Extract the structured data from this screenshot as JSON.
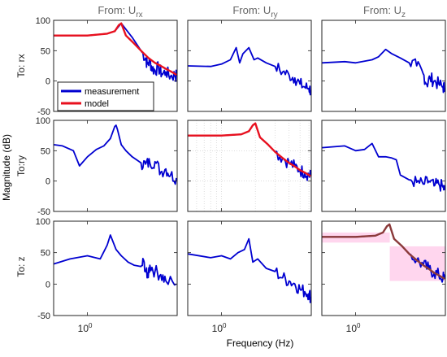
{
  "column_titles": [
    {
      "main": "From: U",
      "sub": "rx"
    },
    {
      "main": "From: U",
      "sub": "ry"
    },
    {
      "main": "From: U",
      "sub": "z"
    }
  ],
  "row_titles": [
    "To: rx",
    "To:ry",
    "To: z"
  ],
  "xlabel": "Frequency  (Hz)",
  "ylabel": "Magnitude (dB)",
  "x_tick_label": "10",
  "x_tick_exponent": "0",
  "legend": {
    "measurement": "measurement",
    "model": "model"
  },
  "colors": {
    "measurement": "#0000d0",
    "model": "#e8101e",
    "model_z": "#8b3a3a",
    "highlight": "#ffd6ee",
    "grid": "#c8c8c8"
  },
  "chart_data": {
    "type": "line",
    "layout": "3x3 grid",
    "xlabel": "Frequency  (Hz)",
    "ylabel": "Magnitude (dB)",
    "x_scale": "log",
    "xlim": [
      0.5,
      6.3
    ],
    "ylim": [
      -50,
      100
    ],
    "y_ticks": [
      -50,
      0,
      50,
      100
    ],
    "legend_position": "lower-left of top-left panel",
    "panels": [
      {
        "row": "To: rx",
        "col": "From: U rx",
        "grid": false,
        "series": [
          {
            "name": "measurement",
            "x": [
              0.5,
              1.0,
              1.5,
              1.75,
              2.0,
              2.5,
              3.0,
              3.3,
              3.4,
              3.6,
              3.8,
              4.0,
              4.3,
              4.6,
              5.0,
              5.5,
              6.0,
              6.2
            ],
            "y": [
              75,
              75,
              78,
              82,
              95,
              72,
              50,
              38,
              28,
              32,
              20,
              18,
              22,
              12,
              15,
              8,
              10,
              8
            ]
          },
          {
            "name": "model",
            "x": [
              0.5,
              1.0,
              1.5,
              1.75,
              1.9,
              2.0,
              2.2,
              2.6,
              3.0,
              3.5,
              4.0,
              4.5,
              5.0,
              5.5,
              6.0,
              6.2
            ],
            "y": [
              75,
              75,
              78,
              82,
              92,
              95,
              75,
              62,
              50,
              38,
              30,
              25,
              20,
              16,
              12,
              10
            ]
          }
        ]
      },
      {
        "row": "To: rx",
        "col": "From: U ry",
        "grid": false,
        "series": [
          {
            "name": "measurement",
            "x": [
              0.5,
              0.8,
              1.0,
              1.2,
              1.35,
              1.45,
              1.55,
              1.75,
              1.95,
              2.1,
              2.5,
              3.0,
              3.5,
              4.0,
              4.5,
              5.0,
              5.5,
              6.0,
              6.2
            ],
            "y": [
              25,
              24,
              28,
              35,
              55,
              30,
              45,
              55,
              35,
              38,
              30,
              24,
              15,
              10,
              5,
              -5,
              -10,
              -12,
              -15
            ]
          }
        ]
      },
      {
        "row": "To: rx",
        "col": "From: U z",
        "grid": false,
        "series": [
          {
            "name": "measurement",
            "x": [
              0.5,
              0.8,
              1.0,
              1.4,
              1.6,
              1.85,
              2.1,
              2.5,
              3.0,
              3.5,
              4.0,
              4.3,
              4.6,
              5.0,
              5.5,
              6.0,
              6.2
            ],
            "y": [
              30,
              32,
              30,
              35,
              40,
              52,
              45,
              38,
              30,
              25,
              12,
              -5,
              5,
              0,
              -5,
              -10,
              -12
            ]
          }
        ]
      },
      {
        "row": "To:ry",
        "col": "From: U rx",
        "grid": false,
        "series": [
          {
            "name": "measurement",
            "x": [
              0.5,
              0.6,
              0.75,
              0.85,
              1.0,
              1.2,
              1.4,
              1.6,
              1.75,
              1.8,
              1.85,
              2.0,
              2.2,
              2.5,
              3.0,
              3.3,
              3.6,
              4.0,
              4.5,
              5.0,
              5.5,
              6.2
            ],
            "y": [
              60,
              58,
              50,
              25,
              40,
              52,
              58,
              70,
              90,
              92,
              85,
              60,
              50,
              40,
              30,
              28,
              30,
              32,
              15,
              20,
              10,
              5
            ]
          }
        ]
      },
      {
        "row": "To:ry",
        "col": "From: U ry",
        "grid": true,
        "series": [
          {
            "name": "measurement",
            "x": [
              0.5,
              1.0,
              1.5,
              1.75,
              1.9,
              2.0,
              2.2,
              2.6,
              3.0,
              3.5,
              4.0,
              4.5,
              5.0,
              5.5,
              6.0,
              6.2
            ],
            "y": [
              75,
              75,
              77,
              82,
              92,
              95,
              72,
              60,
              48,
              38,
              30,
              24,
              18,
              14,
              10,
              8
            ]
          },
          {
            "name": "model",
            "x": [
              0.5,
              1.0,
              1.5,
              1.75,
              1.9,
              2.0,
              2.2,
              2.6,
              3.0,
              3.5,
              4.0,
              4.5,
              5.0,
              5.5,
              6.0,
              6.2
            ],
            "y": [
              75,
              75,
              77,
              82,
              92,
              95,
              72,
              60,
              48,
              38,
              30,
              24,
              18,
              14,
              10,
              8
            ]
          }
        ]
      },
      {
        "row": "To:ry",
        "col": "From: U z",
        "grid": false,
        "series": [
          {
            "name": "measurement",
            "x": [
              0.5,
              0.8,
              1.0,
              1.2,
              1.4,
              1.6,
              1.85,
              2.1,
              2.3,
              2.5,
              3.0,
              3.5,
              4.0,
              4.5,
              5.0,
              5.5,
              6.0,
              6.2
            ],
            "y": [
              55,
              58,
              50,
              52,
              62,
              40,
              40,
              38,
              35,
              10,
              2,
              -2,
              -5,
              0,
              -8,
              -5,
              -10,
              -15
            ]
          }
        ]
      },
      {
        "row": "To: z",
        "col": "From: U rx",
        "grid": false,
        "series": [
          {
            "name": "measurement",
            "x": [
              0.5,
              0.7,
              1.0,
              1.3,
              1.5,
              1.6,
              1.8,
              2.0,
              2.3,
              2.6,
              3.0,
              3.2,
              3.4,
              3.6,
              4.0,
              4.5,
              5.0,
              6.2
            ],
            "y": [
              32,
              40,
              45,
              40,
              62,
              78,
              55,
              45,
              35,
              30,
              28,
              35,
              10,
              30,
              20,
              15,
              5,
              0
            ]
          }
        ]
      },
      {
        "row": "To: z",
        "col": "From: U ry",
        "grid": false,
        "series": [
          {
            "name": "measurement",
            "x": [
              0.5,
              0.8,
              1.0,
              1.2,
              1.4,
              1.6,
              1.75,
              1.9,
              2.1,
              2.5,
              3.0,
              3.5,
              4.0,
              4.5,
              5.0,
              5.5,
              6.0,
              6.2
            ],
            "y": [
              48,
              42,
              45,
              40,
              50,
              55,
              72,
              35,
              40,
              25,
              20,
              10,
              5,
              0,
              -8,
              -12,
              -15,
              -20
            ]
          }
        ]
      },
      {
        "row": "To: z",
        "col": "From: U z",
        "grid": false,
        "series": [
          {
            "name": "measurement",
            "x": [
              0.5,
              1.0,
              1.5,
              1.75,
              1.9,
              2.0,
              2.2,
              2.6,
              3.0,
              3.5,
              4.0,
              4.5,
              5.0,
              5.5,
              6.0,
              6.2
            ],
            "y": [
              75,
              75,
              77,
              82,
              92,
              95,
              72,
              60,
              48,
              38,
              30,
              24,
              18,
              14,
              10,
              8
            ]
          },
          {
            "name": "model",
            "x": [
              0.5,
              1.0,
              1.5,
              1.75,
              1.9,
              2.0,
              2.2,
              2.6,
              3.0,
              3.5,
              4.0,
              4.5,
              5.0,
              5.5,
              6.0,
              6.2
            ],
            "y": [
              75,
              75,
              77,
              82,
              92,
              95,
              72,
              60,
              48,
              38,
              30,
              24,
              18,
              14,
              10,
              8
            ]
          }
        ]
      }
    ]
  }
}
